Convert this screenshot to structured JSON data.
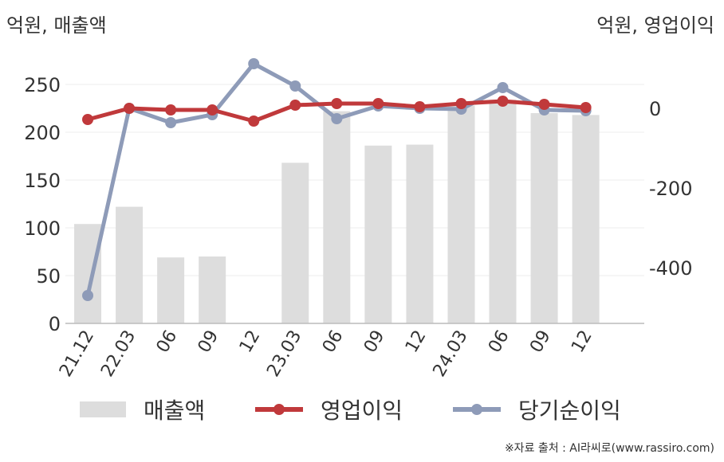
{
  "units": {
    "left": "억원, 매출액",
    "right": "억원, 영업이익"
  },
  "source": "※자료 출처 : AI라씨로(www.rassiro.com)",
  "chart_data": {
    "type": "bar+line",
    "categories": [
      "21.12",
      "22.03",
      "06",
      "09",
      "12",
      "23.03",
      "06",
      "09",
      "12",
      "24.03",
      "06",
      "09",
      "12"
    ],
    "series": [
      {
        "name": "매출액",
        "type": "bar",
        "axis": "left",
        "color": "#dddddd",
        "values": [
          104,
          122,
          69,
          70,
          0,
          168,
          222,
          186,
          187,
          228,
          234,
          220,
          218
        ]
      },
      {
        "name": "영업이익",
        "type": "line",
        "axis": "right",
        "color": "#c0393b",
        "values": [
          -28,
          0,
          -4,
          -4,
          -32,
          8,
          12,
          12,
          4,
          12,
          18,
          10,
          2
        ]
      },
      {
        "name": "당기순이익",
        "type": "line",
        "axis": "right",
        "color": "#8e9bb8",
        "values": [
          -470,
          0,
          -36,
          -16,
          112,
          56,
          -26,
          6,
          0,
          -2,
          52,
          -4,
          -6
        ]
      }
    ],
    "left_axis": {
      "min": 0,
      "max": 250,
      "ticks": [
        0,
        50,
        100,
        150,
        200,
        250
      ]
    },
    "right_axis": {
      "ticks": [
        0,
        -200,
        -400
      ]
    },
    "legend": [
      "매출액",
      "영업이익",
      "당기순이익"
    ],
    "legend_position": "bottom",
    "grid": true
  }
}
